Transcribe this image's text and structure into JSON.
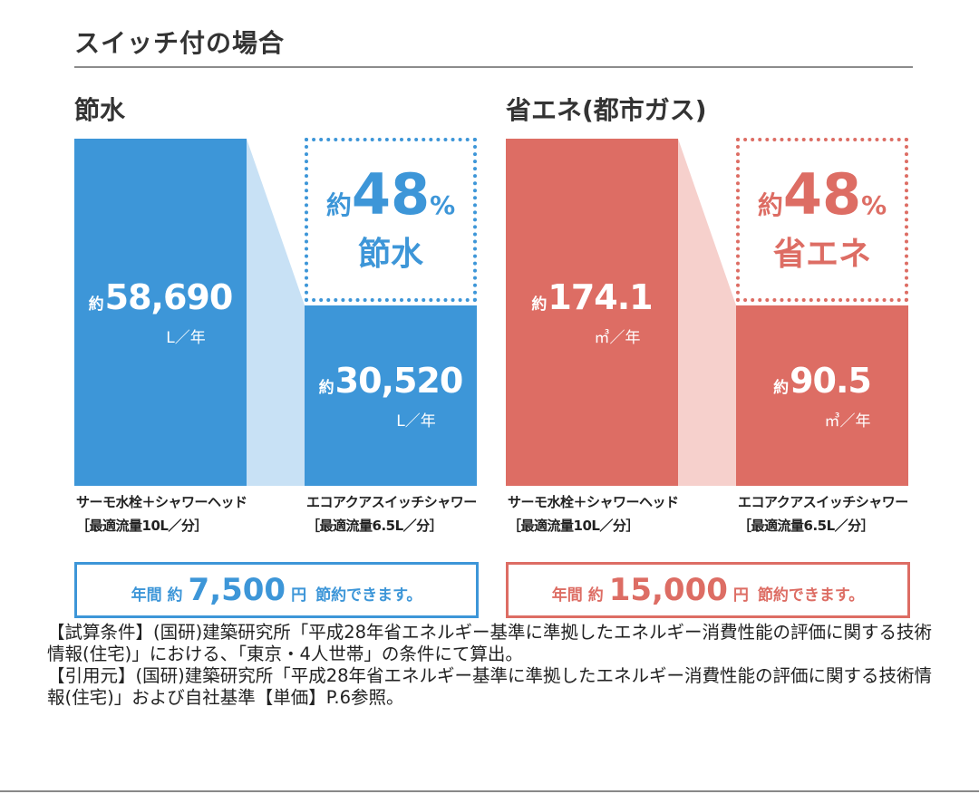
{
  "section_title": "スイッチ付の場合",
  "colors": {
    "blue": "#3d96d8",
    "blue_light": "#c8e1f5",
    "red": "#dd6d64",
    "red_light": "#f6d0cc"
  },
  "chart_data": [
    {
      "type": "bar",
      "title": "節水",
      "categories": [
        "サーモ水栓＋シャワーヘッド",
        "エコアクアスイッチシャワー"
      ],
      "category_sublabels": [
        "［最適流量10L／分］",
        "［最適流量6.5L／分］"
      ],
      "values": [
        58690,
        30520
      ],
      "value_prefix": "約",
      "value_labels": [
        "58,690",
        "30,520"
      ],
      "unit": "L／年",
      "ylim": [
        0,
        58690
      ],
      "reduction": {
        "prefix": "約",
        "number": "48",
        "percent": "%",
        "word": "節水"
      },
      "summary": {
        "pre": "年間 約",
        "amount": "7,500",
        "yen": "円",
        "post": "節約できます。"
      }
    },
    {
      "type": "bar",
      "title": "省エネ(都市ガス)",
      "categories": [
        "サーモ水栓＋シャワーヘッド",
        "エコアクアスイッチシャワー"
      ],
      "category_sublabels": [
        "［最適流量10L／分］",
        "［最適流量6.5L／分］"
      ],
      "values": [
        174.1,
        90.5
      ],
      "value_prefix": "約",
      "value_labels": [
        "174.1",
        "90.5"
      ],
      "unit": "㎥／年",
      "ylim": [
        0,
        174.1
      ],
      "reduction": {
        "prefix": "約",
        "number": "48",
        "percent": "%",
        "word": "省エネ"
      },
      "summary": {
        "pre": "年間 約",
        "amount": "15,000",
        "yen": "円",
        "post": "節約できます。"
      }
    }
  ],
  "note": {
    "calc_conditions": "【試算条件】(国研)建築研究所「平成28年省エネルギー基準に準拠したエネルギー消費性能の評価に関する技術情報(住宅)」における、「東京・4人世帯」の条件にて算出。",
    "citation": "【引用元】(国研)建築研究所「平成28年省エネルギー基準に準拠したエネルギー消費性能の評価に関する技術情報(住宅)」および自社基準【単価】P.6参照。"
  }
}
